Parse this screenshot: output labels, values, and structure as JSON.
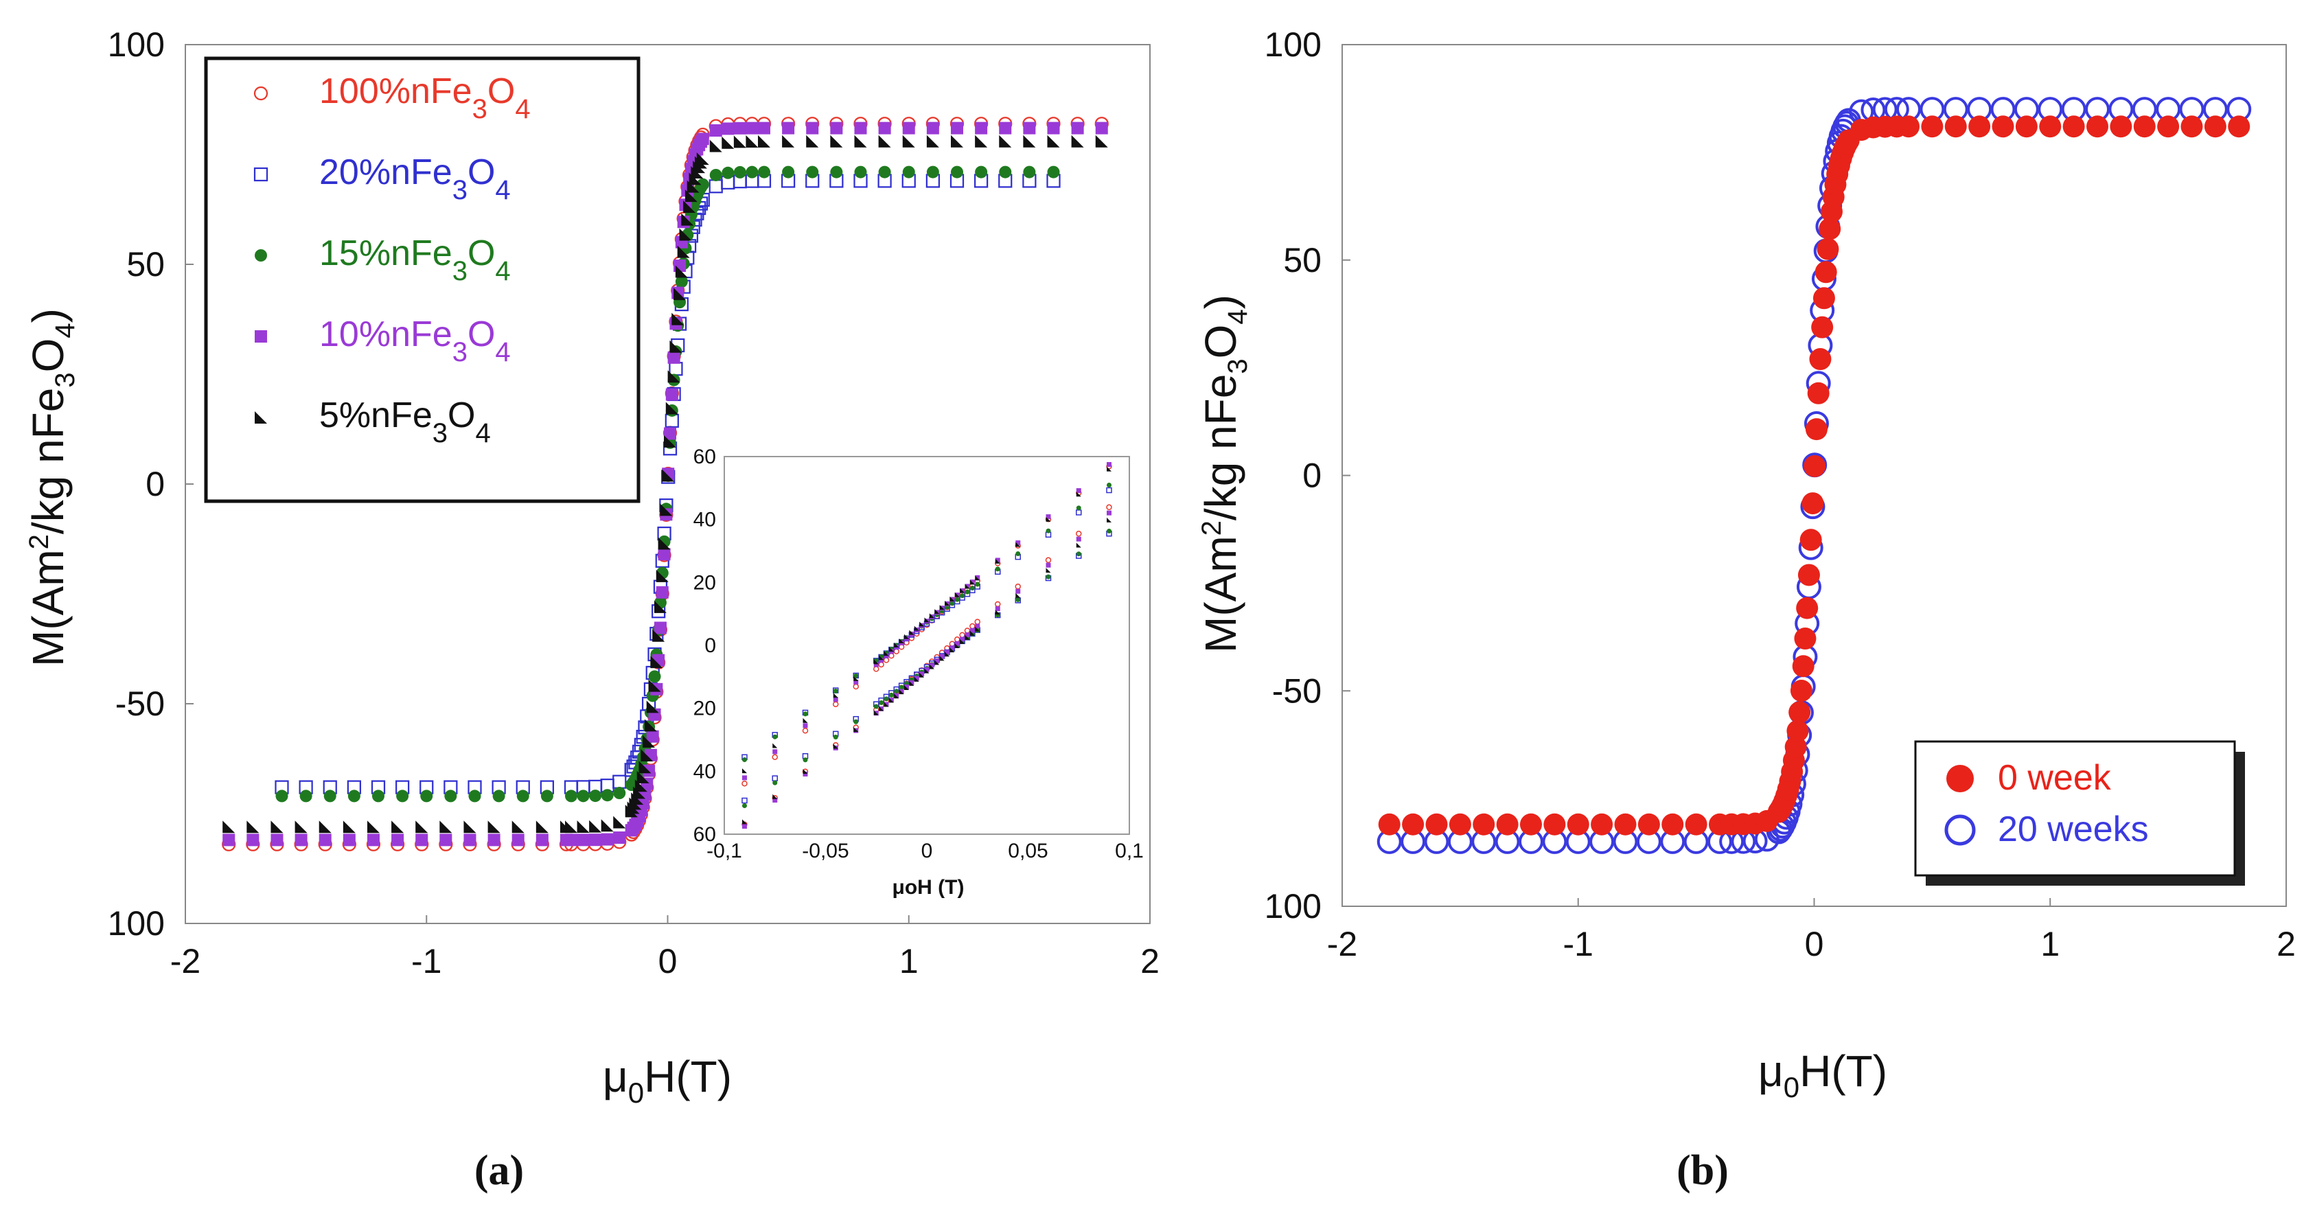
{
  "captions": [
    "(a)",
    "(b)"
  ],
  "chart_data": [
    {
      "type": "scatter",
      "title": "",
      "xlabel": {
        "pre": "μ",
        "sub": "0",
        "post": "H(T)"
      },
      "ylabel": {
        "pre": "M(Am",
        "sup": "2",
        "mid": "/kg nFe",
        "sub1": "3",
        "mid2": "O",
        "sub2": "4",
        "post": ")"
      },
      "xlim": [
        -2,
        2
      ],
      "ylim": [
        -100,
        100
      ],
      "xticks": [
        "-2",
        "-1",
        "0",
        "1",
        "2"
      ],
      "yticks": [
        "100",
        "50",
        "0",
        "-50",
        "100"
      ],
      "legend_position": "top-left",
      "series": [
        {
          "name": {
            "pre": "100%nFe",
            "sub1": "3",
            "mid": "O",
            "sub2": "4"
          },
          "color": "#e8392b",
          "marker": "open-circle",
          "Ms": 82,
          "Hw": 0.07,
          "xmax": 1.82
        },
        {
          "name": {
            "pre": "20%nFe",
            "sub1": "3",
            "mid": "O",
            "sub2": "4"
          },
          "color": "#3030d0",
          "marker": "open-square",
          "Ms": 69,
          "Hw": 0.085,
          "xmax": 1.6
        },
        {
          "name": {
            "pre": "15%nFe",
            "sub1": "3",
            "mid": "O",
            "sub2": "4"
          },
          "color": "#1f7a1f",
          "marker": "filled-circle",
          "Ms": 71,
          "Hw": 0.075,
          "xmax": 1.6
        },
        {
          "name": {
            "pre": "10%nFe",
            "sub1": "3",
            "mid": "O",
            "sub2": "4"
          },
          "color": "#9a3ad6",
          "marker": "filled-square",
          "Ms": 81,
          "Hw": 0.07,
          "xmax": 1.82
        },
        {
          "name": {
            "pre": "5%nFe",
            "sub1": "3",
            "mid": "O",
            "sub2": "4"
          },
          "color": "#111111",
          "marker": "triangle",
          "Ms": 78,
          "Hw": 0.08,
          "xmax": 1.82
        }
      ],
      "inset": {
        "xlabel": "μoH (T)",
        "xlim": [
          -0.1,
          0.1
        ],
        "ylim": [
          -60,
          60
        ],
        "xticks": [
          "-0,1",
          "-0,05",
          "0",
          "0,05",
          "0,1"
        ],
        "yticks": [
          "60",
          "40",
          "20",
          "0",
          "20",
          "40",
          "60"
        ]
      }
    },
    {
      "type": "scatter",
      "title": "",
      "xlabel": {
        "pre": "μ",
        "sub": "0",
        "post": "H(T)"
      },
      "ylabel": {
        "pre": "M(Am",
        "sup": "2",
        "mid": "/kg nFe",
        "sub1": "3",
        "mid2": "O",
        "sub2": "4",
        "post": ")"
      },
      "xlim": [
        -2,
        2
      ],
      "ylim": [
        -100,
        100
      ],
      "xticks": [
        "-2",
        "-1",
        "0",
        "1",
        "2"
      ],
      "yticks": [
        "100",
        "50",
        "0",
        "-50",
        "100"
      ],
      "legend_position": "bottom-right",
      "series": [
        {
          "name": "0 week",
          "color": "#e8231a",
          "marker": "filled-circle",
          "Ms": 81,
          "Hw": 0.075,
          "xmax": 1.8
        },
        {
          "name": "20 weeks",
          "color": "#3a3ae0",
          "marker": "open-circle",
          "Ms": 85,
          "Hw": 0.07,
          "xmax": 1.8
        }
      ]
    }
  ]
}
